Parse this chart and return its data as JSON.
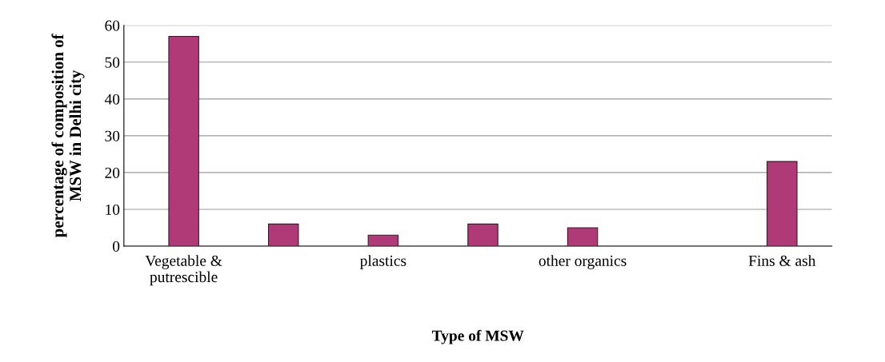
{
  "chart_data": {
    "type": "bar",
    "xlabel": "Type of MSW",
    "ylabel": "percentage of composition of\nMSW in Delhi city",
    "categories": [
      "Vegetable &\nputrescible",
      null,
      "plastics",
      null,
      "other organics",
      null,
      "Fins & ash"
    ],
    "values": [
      57,
      6,
      3,
      6,
      5,
      null,
      23
    ],
    "color": "#b03a78",
    "ylim": [
      0,
      60
    ],
    "yticks": [
      0,
      10,
      20,
      30,
      40,
      50,
      60
    ],
    "grid": "y",
    "legend": false
  }
}
